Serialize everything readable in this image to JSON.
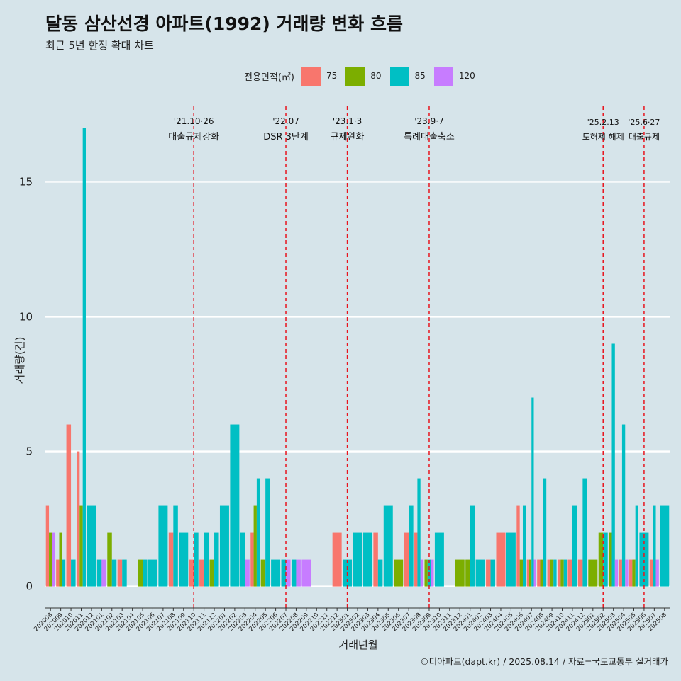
{
  "header": {
    "title": "달동 삼산선경 아파트(1992) 거래량 변화 흐름",
    "subtitle": "최근 5년 한정 확대 차트"
  },
  "legend": {
    "title": "전용면적(㎡)",
    "items": [
      {
        "label": "75",
        "color": "#f8766d"
      },
      {
        "label": "80",
        "color": "#7cae00"
      },
      {
        "label": "85",
        "color": "#00bfc4"
      },
      {
        "label": "120",
        "color": "#c77cff"
      }
    ]
  },
  "caption": "©디아파트(dapt.kr) / 2025.08.14 / 자료=국토교통부 실거래가",
  "chart_data": {
    "type": "bar",
    "xlabel": "거래년월",
    "ylabel": "거래량(건)",
    "ylim": [
      -0.8,
      17.8
    ],
    "yticks": [
      0,
      5,
      10,
      15
    ],
    "ytick_labels": [
      "0",
      "5",
      "10",
      "15"
    ],
    "series_names": [
      "75",
      "80",
      "85",
      "120"
    ],
    "series_colors": [
      "#f8766d",
      "#7cae00",
      "#00bfc4",
      "#c77cff"
    ],
    "categories": [
      "202008",
      "202009",
      "202010",
      "202011",
      "202012",
      "202101",
      "202102",
      "202103",
      "202104",
      "202105",
      "202106",
      "202107",
      "202108",
      "202109",
      "202110",
      "202111",
      "202112",
      "202201",
      "202202",
      "202203",
      "202204",
      "202205",
      "202206",
      "202207",
      "202208",
      "202209",
      "202210",
      "202211",
      "202212",
      "202301",
      "202302",
      "202303",
      "202304",
      "202305",
      "202306",
      "202307",
      "202308",
      "202309",
      "202310",
      "202311",
      "202312",
      "202401",
      "202402",
      "202403",
      "202404",
      "202405",
      "202406",
      "202407",
      "202408",
      "202409",
      "202410",
      "202411",
      "202412",
      "202501",
      "202502",
      "202503",
      "202504",
      "202505",
      "202506",
      "202507",
      "202508"
    ],
    "values": [
      [
        3,
        2,
        0,
        2
      ],
      [
        1,
        2,
        1,
        0
      ],
      [
        6,
        0,
        1,
        0
      ],
      [
        5,
        3,
        17,
        0
      ],
      [
        0,
        0,
        3,
        0
      ],
      [
        0,
        0,
        1,
        1
      ],
      [
        0,
        2,
        1,
        0
      ],
      [
        1,
        0,
        1,
        0
      ],
      [
        0,
        0,
        0,
        0
      ],
      [
        0,
        1,
        1,
        0
      ],
      [
        0,
        0,
        1,
        0
      ],
      [
        0,
        0,
        3,
        0
      ],
      [
        2,
        0,
        3,
        0
      ],
      [
        0,
        0,
        2,
        0
      ],
      [
        1,
        0,
        2,
        0
      ],
      [
        1,
        0,
        2,
        0
      ],
      [
        0,
        1,
        2,
        0
      ],
      [
        0,
        0,
        3,
        0
      ],
      [
        0,
        0,
        6,
        0
      ],
      [
        0,
        0,
        2,
        1
      ],
      [
        2,
        3,
        4,
        0
      ],
      [
        0,
        1,
        4,
        0
      ],
      [
        0,
        0,
        1,
        0
      ],
      [
        0,
        0,
        1,
        1
      ],
      [
        0,
        0,
        1,
        1
      ],
      [
        0,
        0,
        0,
        1
      ],
      [
        0,
        0,
        0,
        0
      ],
      [
        0,
        0,
        0,
        0
      ],
      [
        2,
        0,
        0,
        0
      ],
      [
        0,
        0,
        1,
        0
      ],
      [
        0,
        0,
        2,
        0
      ],
      [
        0,
        0,
        2,
        0
      ],
      [
        2,
        0,
        1,
        0
      ],
      [
        0,
        0,
        3,
        0
      ],
      [
        0,
        1,
        0,
        0
      ],
      [
        2,
        0,
        3,
        0
      ],
      [
        2,
        0,
        4,
        1
      ],
      [
        0,
        1,
        1,
        1
      ],
      [
        0,
        0,
        2,
        0
      ],
      [
        0,
        0,
        0,
        0
      ],
      [
        0,
        1,
        0,
        0
      ],
      [
        0,
        1,
        3,
        0
      ],
      [
        0,
        0,
        1,
        0
      ],
      [
        1,
        0,
        1,
        0
      ],
      [
        2,
        0,
        0,
        0
      ],
      [
        0,
        0,
        2,
        0
      ],
      [
        3,
        1,
        3,
        0
      ],
      [
        1,
        1,
        7,
        1
      ],
      [
        1,
        1,
        4,
        0
      ],
      [
        1,
        1,
        1,
        0
      ],
      [
        1,
        1,
        1,
        0
      ],
      [
        1,
        0,
        3,
        0
      ],
      [
        1,
        0,
        4,
        0
      ],
      [
        0,
        1,
        0,
        0
      ],
      [
        0,
        2,
        2,
        0
      ],
      [
        0,
        2,
        9,
        1
      ],
      [
        1,
        0,
        6,
        1
      ],
      [
        1,
        1,
        3,
        0
      ],
      [
        0,
        0,
        2,
        0
      ],
      [
        1,
        0,
        3,
        1
      ],
      [
        0,
        0,
        3,
        0
      ]
    ],
    "events": [
      {
        "index": 14,
        "date": "'21.10·26",
        "label": "대출규제강화"
      },
      {
        "index": 23,
        "date": "'22.07",
        "label": "DSR 3단계"
      },
      {
        "index": 29,
        "date": "'23.1·3",
        "label": "규제완화"
      },
      {
        "index": 37,
        "date": "'23.9·7",
        "label": "특례대출축소"
      },
      {
        "index": 54,
        "date": "'25.2.13",
        "label": "토허제 해제"
      },
      {
        "index": 58,
        "date": "'25.6·27",
        "label": "대출규제"
      }
    ]
  }
}
